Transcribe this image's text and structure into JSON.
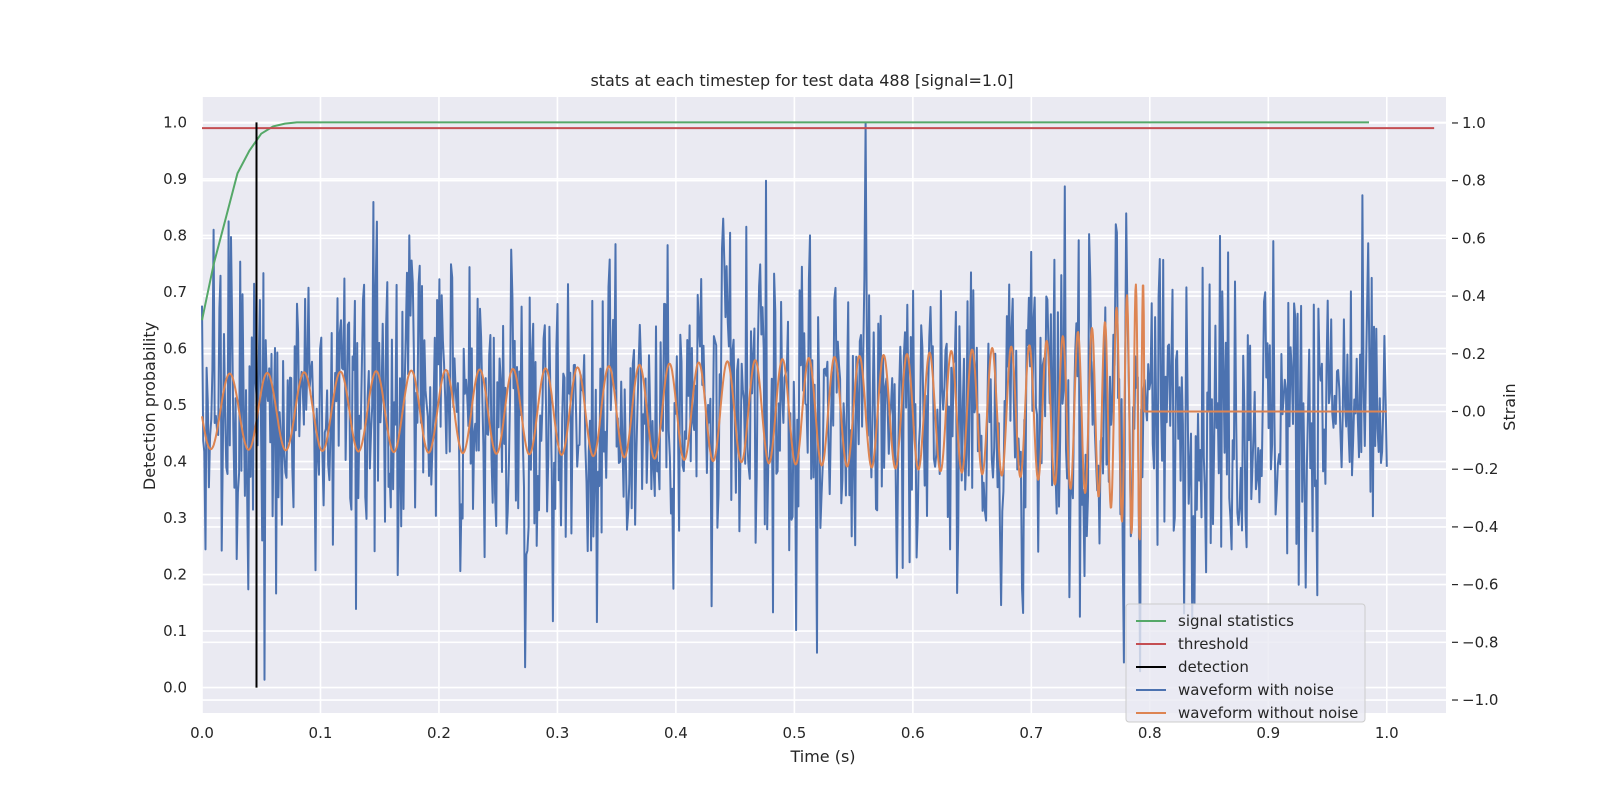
{
  "chart_data": {
    "type": "line",
    "title": "stats at each timestep for test data 488 [signal=1.0]",
    "xlabel": "Time (s)",
    "ylabel_left": "Detection probability",
    "ylabel_right": "Strain",
    "xlim": [
      0.0,
      1.05
    ],
    "ylim_left": [
      -0.045,
      1.045
    ],
    "ylim_right": [
      -1.045,
      1.09
    ],
    "x_ticks": [
      "0.0",
      "0.1",
      "0.2",
      "0.3",
      "0.4",
      "0.5",
      "0.6",
      "0.7",
      "0.8",
      "0.9",
      "1.0"
    ],
    "y_left_ticks": [
      "0.0",
      "0.1",
      "0.2",
      "0.3",
      "0.4",
      "0.5",
      "0.6",
      "0.7",
      "0.8",
      "0.9",
      "1.0"
    ],
    "y_right_ticks": [
      "−1.0",
      "−0.8",
      "−0.6",
      "−0.4",
      "−0.2",
      "0.0",
      "0.2",
      "0.4",
      "0.6",
      "0.8",
      "1.0"
    ],
    "grid": true,
    "legend_position": "lower-right",
    "series": [
      {
        "name": "signal statistics",
        "axis": "left",
        "color": "#55a868",
        "x": [
          0.0,
          0.01,
          0.02,
          0.03,
          0.04,
          0.05,
          0.06,
          0.07,
          0.08,
          0.1,
          0.2,
          0.4,
          0.6,
          0.8,
          0.985
        ],
        "y": [
          0.65,
          0.75,
          0.83,
          0.91,
          0.95,
          0.98,
          0.993,
          0.998,
          1.0,
          1.0,
          1.0,
          1.0,
          1.0,
          1.0,
          1.0
        ]
      },
      {
        "name": "threshold",
        "axis": "left",
        "color": "#c44e52",
        "x": [
          0.0,
          1.04
        ],
        "y": [
          0.99,
          0.99
        ]
      },
      {
        "name": "detection",
        "axis": "left",
        "color": "#000000",
        "x": [
          0.046,
          0.046
        ],
        "y": [
          0.0,
          1.0
        ]
      },
      {
        "name": "waveform with noise",
        "axis": "right",
        "color": "#4c72b0",
        "x_start": 0.0,
        "x_end": 1.0,
        "points": 1024,
        "peaks": [
          {
            "x": 0.01,
            "y": 0.63
          },
          {
            "x": 0.476,
            "y": 0.8
          },
          {
            "x": 0.56,
            "y": 1.0
          },
          {
            "x": 0.053,
            "y": -0.93
          },
          {
            "x": 0.333,
            "y": -0.73
          },
          {
            "x": 0.778,
            "y": -0.87
          }
        ]
      },
      {
        "name": "waveform without noise",
        "axis": "right",
        "color": "#dd8452",
        "x_end": 0.795,
        "chirp_envelope": [
          {
            "x": 0.0,
            "y": 0.13
          },
          {
            "x": 0.3,
            "y": 0.15
          },
          {
            "x": 0.6,
            "y": 0.2
          },
          {
            "x": 0.7,
            "y": 0.23
          },
          {
            "x": 0.76,
            "y": 0.3
          },
          {
            "x": 0.79,
            "y": 0.45
          }
        ],
        "after_end_value": 0.0
      }
    ]
  }
}
